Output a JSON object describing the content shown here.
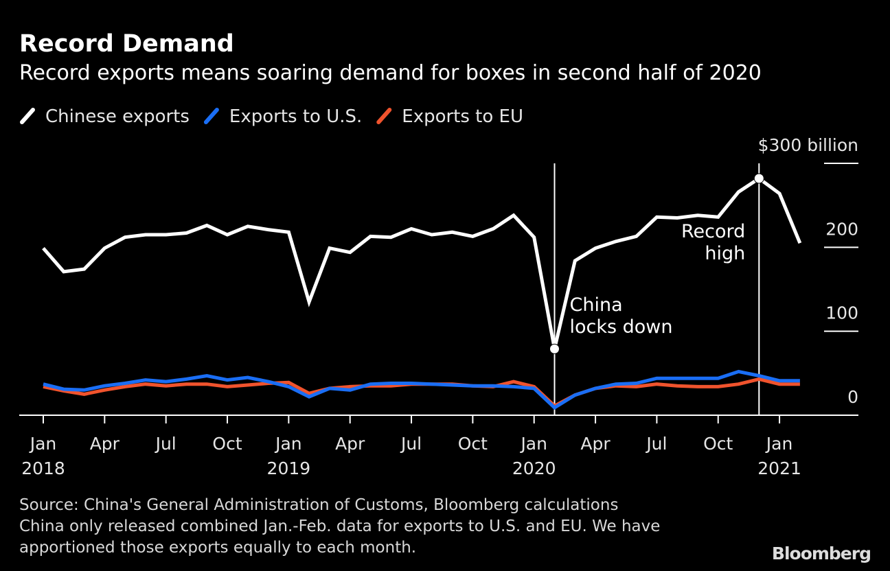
{
  "chart_data": {
    "type": "line",
    "title": "Record Demand",
    "subtitle": "Record exports means soaring demand for boxes in second half of 2020",
    "x": [
      "2018-01",
      "2018-02",
      "2018-03",
      "2018-04",
      "2018-05",
      "2018-06",
      "2018-07",
      "2018-08",
      "2018-09",
      "2018-10",
      "2018-11",
      "2018-12",
      "2019-01",
      "2019-02",
      "2019-03",
      "2019-04",
      "2019-05",
      "2019-06",
      "2019-07",
      "2019-08",
      "2019-09",
      "2019-10",
      "2019-11",
      "2019-12",
      "2020-01",
      "2020-02",
      "2020-03",
      "2020-04",
      "2020-05",
      "2020-06",
      "2020-07",
      "2020-08",
      "2020-09",
      "2020-10",
      "2020-11",
      "2020-12",
      "2021-01",
      "2021-02"
    ],
    "series": [
      {
        "name": "Chinese exports",
        "color": "#ffffff",
        "values": [
          199,
          171,
          174,
          199,
          212,
          215,
          215,
          217,
          226,
          215,
          225,
          221,
          218,
          135,
          199,
          194,
          213,
          212,
          222,
          215,
          218,
          213,
          222,
          238,
          212,
          79,
          184,
          199,
          207,
          213,
          236,
          235,
          238,
          236,
          266,
          282,
          264,
          205
        ]
      },
      {
        "name": "Exports to U.S.",
        "color": "#1a6ef5",
        "values": [
          37,
          31,
          30,
          35,
          38,
          42,
          40,
          43,
          47,
          42,
          45,
          40,
          34,
          22,
          32,
          30,
          37,
          38,
          38,
          37,
          36,
          35,
          35,
          34,
          32,
          9,
          24,
          32,
          37,
          38,
          44,
          44,
          44,
          44,
          52,
          47,
          41,
          41
        ]
      },
      {
        "name": "Exports to EU",
        "color": "#f0532d",
        "values": [
          34,
          29,
          25,
          30,
          34,
          37,
          35,
          37,
          37,
          34,
          36,
          38,
          39,
          26,
          32,
          34,
          35,
          35,
          37,
          37,
          37,
          35,
          34,
          40,
          34,
          11,
          24,
          32,
          35,
          34,
          37,
          35,
          34,
          34,
          37,
          43,
          37,
          37
        ]
      }
    ],
    "ylim": [
      0,
      300
    ],
    "yticks": [
      0,
      100,
      200,
      {
        "value": 300,
        "label": "$300 billion"
      }
    ],
    "xticks": [
      {
        "value": "2018-01",
        "label": "Jan"
      },
      {
        "value": "2018-04",
        "label": "Apr"
      },
      {
        "value": "2018-07",
        "label": "Jul"
      },
      {
        "value": "2018-10",
        "label": "Oct"
      },
      {
        "value": "2019-01",
        "label": "Jan"
      },
      {
        "value": "2019-04",
        "label": "Apr"
      },
      {
        "value": "2019-07",
        "label": "Jul"
      },
      {
        "value": "2019-10",
        "label": "Oct"
      },
      {
        "value": "2020-01",
        "label": "Jan"
      },
      {
        "value": "2020-04",
        "label": "Apr"
      },
      {
        "value": "2020-07",
        "label": "Jul"
      },
      {
        "value": "2020-10",
        "label": "Oct"
      },
      {
        "value": "2021-01",
        "label": "Jan"
      }
    ],
    "xtick_years": [
      {
        "value": "2018-01",
        "label": "2018"
      },
      {
        "value": "2019-01",
        "label": "2019"
      },
      {
        "value": "2020-01",
        "label": "2020"
      },
      {
        "value": "2021-01",
        "label": "2021"
      }
    ],
    "annotations": [
      {
        "x": "2020-02",
        "lines": [
          "China",
          "locks down"
        ]
      },
      {
        "x": "2020-12",
        "lines": [
          "Record",
          "high"
        ]
      }
    ],
    "footnotes": [
      "Source: China's General Administration of Customs, Bloomberg calculations",
      "China only released combined Jan.-Feb. data for exports to U.S. and EU. We have",
      "apportioned those exports equally to each month."
    ],
    "brand": "Bloomberg"
  }
}
